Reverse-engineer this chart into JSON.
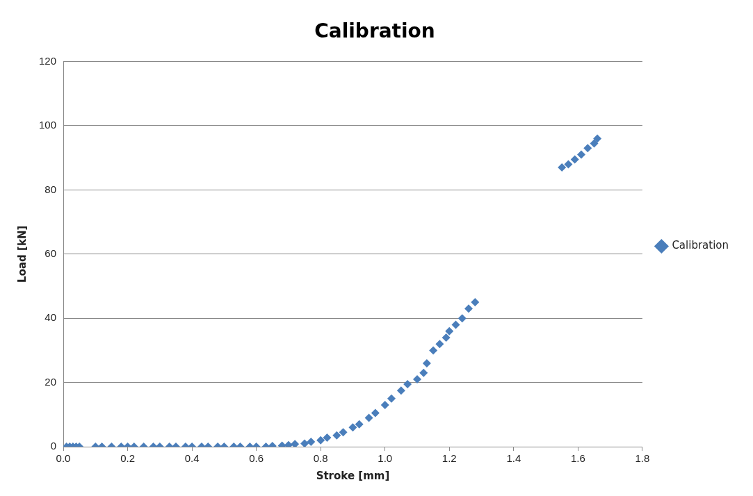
{
  "chart_data": {
    "type": "scatter",
    "title": "Calibration",
    "xlabel": "Stroke [mm]",
    "ylabel": "Load [kN]",
    "series": [
      {
        "name": "Calibration",
        "color": "#4a7ebb",
        "x": [
          0.01,
          0.02,
          0.03,
          0.04,
          0.05,
          0.1,
          0.12,
          0.15,
          0.18,
          0.2,
          0.22,
          0.25,
          0.28,
          0.3,
          0.33,
          0.35,
          0.38,
          0.4,
          0.43,
          0.45,
          0.48,
          0.5,
          0.53,
          0.55,
          0.58,
          0.6,
          0.63,
          0.65,
          0.68,
          0.7,
          0.72,
          0.75,
          0.77,
          0.8,
          0.82,
          0.85,
          0.87,
          0.9,
          0.92,
          0.95,
          0.97,
          1.0,
          1.02,
          1.05,
          1.07,
          1.1,
          1.12,
          1.13,
          1.15,
          1.17,
          1.19,
          1.2,
          1.22,
          1.24,
          1.26,
          1.28,
          1.55,
          1.57,
          1.59,
          1.61,
          1.63,
          1.65,
          1.66
        ],
        "values": [
          0,
          0,
          0,
          0,
          0,
          0,
          0,
          0,
          0,
          0,
          0,
          0,
          0,
          0,
          0,
          0,
          0,
          0,
          0,
          0,
          0,
          0,
          0,
          0,
          0,
          0,
          0,
          0.2,
          0.3,
          0.5,
          0.8,
          1,
          1.5,
          2,
          2.8,
          3.5,
          4.5,
          6,
          7,
          9,
          10.5,
          13,
          15,
          17.5,
          19.5,
          21,
          23,
          26,
          30,
          32,
          34,
          36,
          38,
          40,
          43,
          45,
          87,
          88,
          89.5,
          91,
          93,
          94.5,
          96
        ]
      }
    ],
    "xlim": [
      0,
      1.8
    ],
    "xticks": [
      {
        "value": 0,
        "label": "0.0"
      },
      0.2,
      0.4,
      0.6,
      0.8,
      {
        "value": 1,
        "label": "1.0"
      },
      1.2,
      1.4,
      1.6,
      1.8
    ],
    "ylim": [
      0,
      120
    ],
    "yticks": [
      0,
      20,
      40,
      60,
      80,
      100,
      120
    ],
    "grid": "y",
    "legend": "right",
    "marker": "diamond"
  }
}
